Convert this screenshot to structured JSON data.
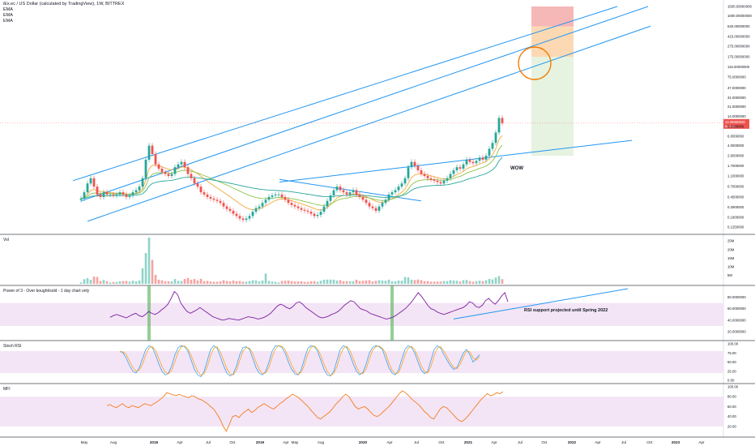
{
  "header": {
    "symbol_line": "iEx.ec / US Dollar (calculated by TradingView), 1W, BITTREX",
    "indicators": [
      "EMA",
      "EMA",
      "EMA"
    ]
  },
  "colors": {
    "background": "#ffffff",
    "channel": "#2196f3",
    "ema_short": "#f2a93b",
    "ema_mid": "#8bc34a",
    "ema_long": "#26a69a",
    "candle_up": "#26a69a",
    "candle_down": "#ef5350",
    "target_red": "#f4a5a5",
    "target_orange": "#fbd0a0",
    "target_green": "#dff0d8",
    "circle": "#f57c00",
    "rsi_line": "#7b1fa2",
    "rsi_band": "#f3e5f5",
    "stoch_k": "#2196f3",
    "stoch_d": "#ff9800",
    "mfi_line": "#f57c20",
    "highlight": "#66bb6a"
  },
  "chart_data": [
    {
      "type": "candlestick",
      "pane": "price",
      "price_scale": "log",
      "price_ticks": [
        "1500.00000000",
        "1000.00000000",
        "640.00000000",
        "415.00000000",
        "275.00000000",
        "175.00000000",
        "115.00000000",
        "75.0000000",
        "47.0000000",
        "31.0000000",
        "21.0000000",
        "14.0000000",
        "9.0000000",
        "6.0000000",
        "4.0000000",
        "2.6000000",
        "1.7000000",
        "1.1000000",
        "0.7000000",
        "0.4500000",
        "0.2900000",
        "0.1900000",
        "0.1250000"
      ],
      "last_price_label": "10.45550833",
      "last_price_sublabel": "6d 14h",
      "annotation": "WOW",
      "weekly_close_approx": [
        0.42,
        0.55,
        0.8,
        1.0,
        0.7,
        0.5,
        0.45,
        0.55,
        0.5,
        0.5,
        0.48,
        0.5,
        0.55,
        0.5,
        0.45,
        0.48,
        0.55,
        0.6,
        0.7,
        1.0,
        2.2,
        4.0,
        2.8,
        1.8,
        1.5,
        1.3,
        1.2,
        1.1,
        1.2,
        1.6,
        1.8,
        2.0,
        1.6,
        1.2,
        1.0,
        0.8,
        0.7,
        0.55,
        0.5,
        0.45,
        0.42,
        0.4,
        0.38,
        0.35,
        0.3,
        0.27,
        0.25,
        0.22,
        0.2,
        0.18,
        0.17,
        0.18,
        0.2,
        0.24,
        0.28,
        0.3,
        0.35,
        0.4,
        0.45,
        0.48,
        0.5,
        0.5,
        0.45,
        0.4,
        0.35,
        0.32,
        0.3,
        0.28,
        0.26,
        0.25,
        0.24,
        0.22,
        0.2,
        0.21,
        0.24,
        0.3,
        0.38,
        0.48,
        0.6,
        0.7,
        0.6,
        0.55,
        0.5,
        0.55,
        0.6,
        0.5,
        0.45,
        0.4,
        0.35,
        0.3,
        0.28,
        0.25,
        0.3,
        0.35,
        0.4,
        0.5,
        0.55,
        0.6,
        0.7,
        0.8,
        1.0,
        1.6,
        2.0,
        1.7,
        1.4,
        1.2,
        1.1,
        1.0,
        0.95,
        0.9,
        0.85,
        0.8,
        0.9,
        1.0,
        1.2,
        1.4,
        1.6,
        1.5,
        1.8,
        2.2,
        2.0,
        1.9,
        2.1,
        2.4,
        2.2,
        2.6,
        3.5,
        4.5,
        7.0,
        13.0,
        10.5
      ]
    },
    {
      "type": "bar",
      "pane": "volume",
      "title": "Vol",
      "ticks": [
        "25M",
        "20M",
        "15M",
        "10M",
        "5M"
      ]
    },
    {
      "type": "line",
      "pane": "rsi",
      "title": "Power of 3 - Over bought/sold - 1 day chart only",
      "ticks": [
        "80.0000000",
        "60.0000000",
        "40.0000000",
        "20.0000000"
      ],
      "ylim": [
        10,
        95
      ],
      "band": [
        30,
        70
      ],
      "annotation": "RSI support projected until Spring 2022",
      "values": [
        45,
        48,
        50,
        48,
        46,
        44,
        47,
        50,
        52,
        48,
        46,
        50,
        55,
        52,
        50,
        53,
        58,
        62,
        68,
        78,
        90,
        85,
        70,
        62,
        55,
        52,
        55,
        58,
        62,
        58,
        54,
        50,
        46,
        44,
        42,
        40,
        41,
        43,
        42,
        41,
        40,
        42,
        44,
        46,
        45,
        44,
        42,
        43,
        45,
        48,
        52,
        58,
        64,
        68,
        66,
        62,
        60,
        64,
        70,
        72,
        68,
        62,
        58,
        54,
        50,
        46,
        44,
        45,
        47,
        50,
        52,
        55,
        60,
        66,
        70,
        74,
        72,
        66,
        60,
        58,
        56,
        52,
        50,
        48,
        46,
        44,
        42,
        43,
        45,
        48,
        52,
        56,
        60,
        66,
        72,
        80,
        88,
        82,
        74,
        66,
        60,
        58,
        54,
        52,
        50,
        52,
        54,
        56,
        58,
        60,
        62,
        66,
        72,
        70,
        64,
        62,
        66,
        74,
        78,
        72,
        68,
        74,
        82,
        88,
        72
      ]
    },
    {
      "type": "line",
      "pane": "stoch",
      "title": "Stoch RSI",
      "ticks": [
        "100.00",
        "75.00",
        "50.00",
        "25.00",
        "0.00"
      ],
      "ylim": [
        0,
        100
      ],
      "band": [
        20,
        80
      ],
      "series": [
        {
          "values": [
            80,
            75,
            60,
            40,
            25,
            20,
            35,
            60,
            85,
            95,
            90,
            70,
            45,
            25,
            15,
            20,
            40,
            70,
            90,
            95,
            92,
            80,
            55,
            30,
            15,
            10,
            25,
            55,
            85,
            95,
            88,
            65,
            40,
            20,
            12,
            18,
            40,
            70,
            90,
            92,
            85,
            60,
            35,
            20,
            15,
            25,
            50,
            80,
            95,
            95,
            90,
            75,
            50,
            30,
            18,
            15,
            30,
            60,
            88,
            95,
            92,
            80,
            55,
            30,
            15,
            12,
            25,
            55,
            85,
            95,
            90,
            70,
            45,
            25,
            15,
            22,
            45,
            75,
            90,
            95,
            92,
            85,
            60,
            35,
            20,
            15,
            28,
            58,
            85,
            95,
            90,
            75,
            50,
            28,
            18,
            25,
            55,
            85,
            95,
            88,
            70,
            55,
            40,
            30,
            35,
            55,
            75,
            85,
            70,
            50,
            60,
            70
          ]
        },
        {
          "values": [
            78,
            78,
            70,
            52,
            35,
            25,
            28,
            45,
            70,
            88,
            92,
            82,
            60,
            38,
            22,
            18,
            28,
            52,
            78,
            92,
            94,
            86,
            68,
            45,
            25,
            14,
            18,
            38,
            68,
            88,
            92,
            78,
            55,
            32,
            18,
            15,
            28,
            55,
            80,
            90,
            88,
            74,
            50,
            30,
            18,
            20,
            36,
            64,
            86,
            95,
            93,
            84,
            64,
            42,
            25,
            16,
            22,
            44,
            72,
            90,
            94,
            86,
            68,
            44,
            24,
            14,
            18,
            38,
            68,
            88,
            93,
            82,
            60,
            36,
            20,
            18,
            32,
            58,
            82,
            92,
            94,
            88,
            74,
            48,
            28,
            18,
            20,
            42,
            70,
            88,
            93,
            84,
            64,
            40,
            24,
            20,
            38,
            68,
            88,
            92,
            80,
            64,
            48,
            36,
            32,
            44,
            64,
            80,
            78,
            62,
            55,
            65
          ]
        }
      ]
    },
    {
      "type": "line",
      "pane": "mfi",
      "title": "MFI",
      "ticks": [
        "100.00",
        "80.00",
        "60.00",
        "40.00",
        "20.00"
      ],
      "ylim": [
        5,
        100
      ],
      "band": [
        20,
        80
      ],
      "values": [
        62,
        64,
        60,
        58,
        62,
        66,
        60,
        58,
        62,
        60,
        58,
        62,
        66,
        64,
        62,
        66,
        70,
        75,
        80,
        88,
        86,
        84,
        82,
        85,
        82,
        80,
        78,
        82,
        80,
        76,
        74,
        70,
        66,
        60,
        55,
        45,
        35,
        20,
        10,
        25,
        40,
        42,
        38,
        45,
        50,
        55,
        48,
        52,
        58,
        62,
        66,
        62,
        58,
        55,
        60,
        66,
        70,
        76,
        80,
        85,
        82,
        78,
        72,
        66,
        60,
        52,
        45,
        38,
        35,
        40,
        45,
        50,
        58,
        66,
        72,
        80,
        85,
        80,
        70,
        60,
        55,
        58,
        60,
        55,
        48,
        42,
        40,
        44,
        50,
        56,
        62,
        70,
        78,
        86,
        92,
        88,
        82,
        75,
        70,
        65,
        58,
        50,
        45,
        38,
        35,
        45,
        55,
        60,
        58,
        52,
        45,
        38,
        32,
        30,
        35,
        42,
        50,
        58,
        66,
        74,
        80,
        86,
        82,
        84,
        88,
        86,
        90
      ]
    }
  ],
  "time_axis": [
    "May",
    "Aug",
    "2018",
    "Apr",
    "Jul",
    "Oct",
    "2019",
    "Apr",
    "May",
    "Aug",
    "2020",
    "Apr",
    "Jul",
    "Oct",
    "2021",
    "Apr",
    "Jul",
    "Oct",
    "2022",
    "Apr",
    "Jul",
    "Oct",
    "2023",
    "Apr"
  ]
}
